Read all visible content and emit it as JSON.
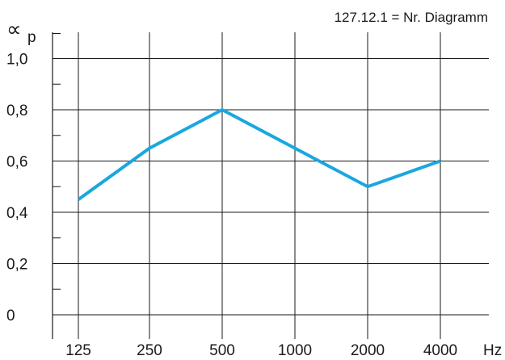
{
  "chart_data": {
    "type": "line",
    "title": "127.12.1 = Nr. Diagramm",
    "ylabel_symbol": "∝",
    "ylabel_subscript": "p",
    "xlabel": "Hz",
    "categories": [
      "125",
      "250",
      "500",
      "1000",
      "2000",
      "4000"
    ],
    "series": [
      {
        "values": [
          0.45,
          0.65,
          0.8,
          0.65,
          0.5,
          0.6
        ]
      }
    ],
    "yticks": [
      0,
      0.2,
      0.4,
      0.6,
      0.8,
      1.0
    ],
    "ytick_labels": [
      "0",
      "0,2",
      "0,4",
      "0,6",
      "0,8",
      "1,0"
    ],
    "ylim": [
      -0.05,
      1.05
    ],
    "grid": true,
    "line_color": "#1aa7e0",
    "grid_color": "#1a1a1a"
  }
}
